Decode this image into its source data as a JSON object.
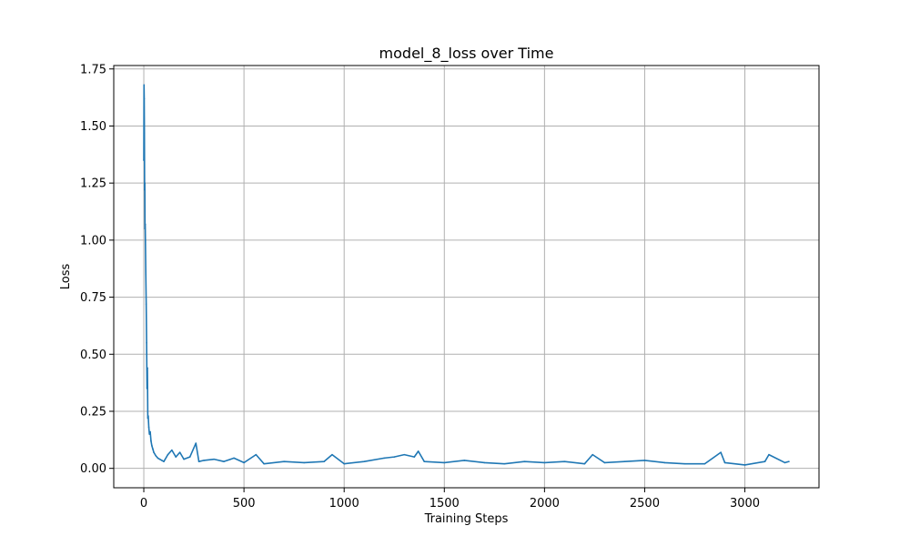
{
  "chart_data": {
    "type": "line",
    "title": "model_8_loss over Time",
    "xlabel": "Training Steps",
    "ylabel": "Loss",
    "xlim": [
      -150,
      3370
    ],
    "ylim": [
      -0.085,
      1.765
    ],
    "x_ticks": [
      0,
      500,
      1000,
      1500,
      2000,
      2500,
      3000
    ],
    "x_tick_labels": [
      "0",
      "500",
      "1000",
      "1500",
      "2000",
      "2500",
      "3000"
    ],
    "y_ticks": [
      0.0,
      0.25,
      0.5,
      0.75,
      1.0,
      1.25,
      1.5,
      1.75
    ],
    "y_tick_labels": [
      "0.00",
      "0.25",
      "0.50",
      "0.75",
      "1.00",
      "1.25",
      "1.50",
      "1.75"
    ],
    "grid": true,
    "series": [
      {
        "color": "#1f77b4",
        "x": [
          0,
          1,
          2,
          3,
          4,
          5,
          6,
          7,
          8,
          10,
          12,
          14,
          16,
          18,
          20,
          22,
          25,
          28,
          32,
          36,
          40,
          45,
          50,
          60,
          70,
          80,
          90,
          100,
          120,
          140,
          160,
          180,
          200,
          230,
          260,
          275,
          300,
          350,
          400,
          450,
          500,
          560,
          600,
          700,
          800,
          900,
          940,
          1000,
          1100,
          1200,
          1250,
          1300,
          1350,
          1370,
          1400,
          1500,
          1600,
          1700,
          1800,
          1900,
          2000,
          2100,
          2200,
          2240,
          2300,
          2400,
          2500,
          2600,
          2700,
          2800,
          2880,
          2900,
          3000,
          3100,
          3120,
          3200,
          3220
        ],
        "y": [
          1.35,
          1.68,
          1.62,
          1.47,
          1.22,
          1.25,
          1.05,
          1.07,
          1.0,
          0.85,
          0.72,
          0.55,
          0.35,
          0.44,
          0.22,
          0.23,
          0.18,
          0.15,
          0.16,
          0.12,
          0.1,
          0.085,
          0.07,
          0.055,
          0.045,
          0.04,
          0.035,
          0.03,
          0.06,
          0.08,
          0.05,
          0.07,
          0.04,
          0.05,
          0.11,
          0.03,
          0.035,
          0.04,
          0.03,
          0.045,
          0.025,
          0.06,
          0.02,
          0.03,
          0.025,
          0.03,
          0.06,
          0.02,
          0.03,
          0.045,
          0.05,
          0.06,
          0.05,
          0.075,
          0.03,
          0.025,
          0.035,
          0.025,
          0.02,
          0.03,
          0.025,
          0.03,
          0.02,
          0.06,
          0.025,
          0.03,
          0.035,
          0.025,
          0.02,
          0.02,
          0.07,
          0.025,
          0.015,
          0.03,
          0.06,
          0.025,
          0.03
        ]
      }
    ]
  }
}
